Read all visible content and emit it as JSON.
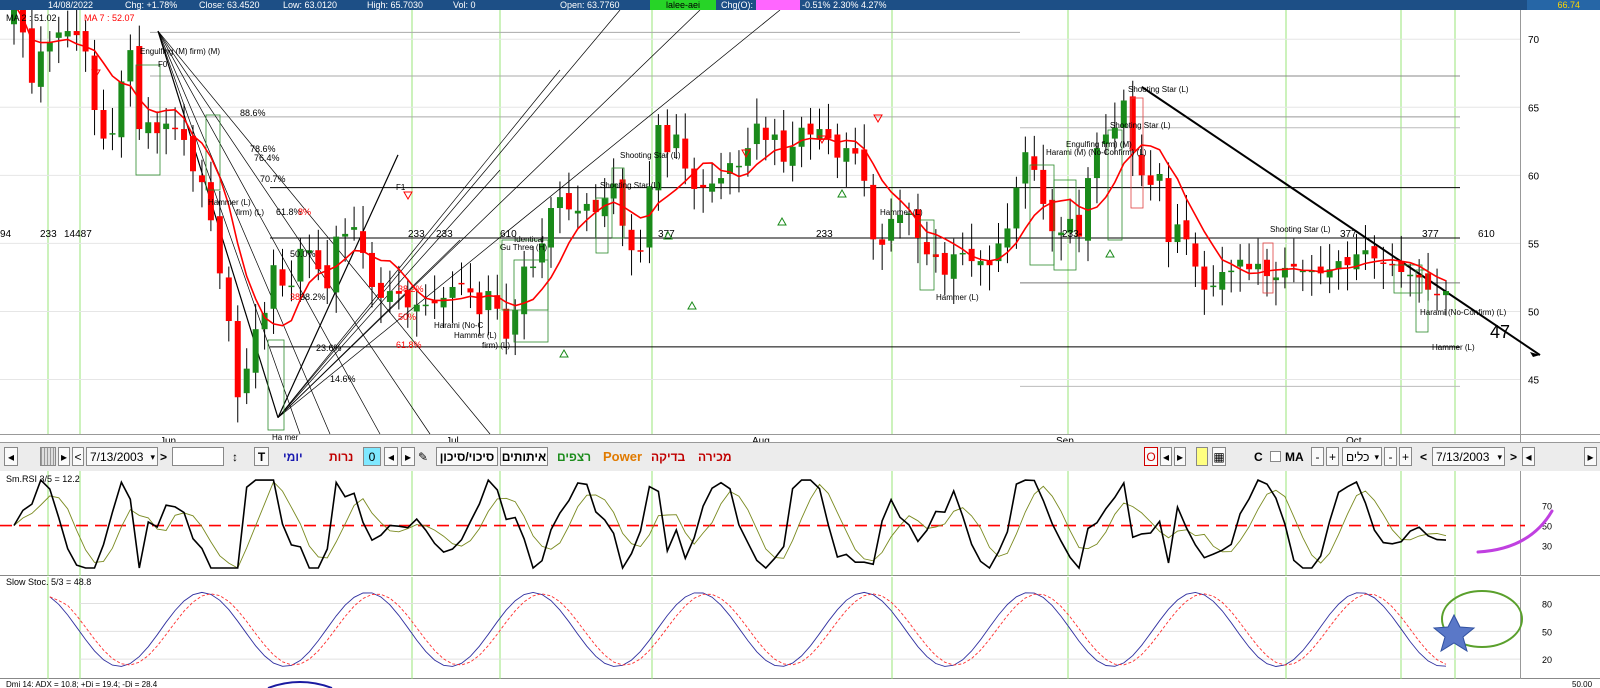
{
  "topbar": {
    "date": "14/08/2022",
    "chg": "Chg: +1.78%",
    "close": "Close: 63.4520",
    "low": "Low: 63.0120",
    "high": "High: 65.7030",
    "vol": "Vol: 0",
    "open": "Open: 63.7760",
    "chip_green": "lalee-aei",
    "chg_o": "Chg(O):",
    "pcts": "-0.51% 2.30% 4.27%",
    "right_value": "66.74",
    "colors": {
      "bar": "#1d4f86",
      "chip_green": "#27d427",
      "chip_pink": "#ff66ff"
    }
  },
  "main": {
    "ma_labels": {
      "ma2": "MA 2 : 51.02",
      "ma7": "MA 7 : 52.07"
    },
    "y_ticks": [
      "70",
      "65",
      "60",
      "55",
      "50",
      "45"
    ],
    "month_labels": [
      "Jun",
      "Jul",
      "Aug",
      "Sep",
      "Oct"
    ],
    "fib_labels": [
      "88.6%",
      "78.6%",
      "76.4%",
      "70.7%",
      "61.8%",
      "8%",
      "50.0%",
      "38.2%",
      "38",
      "23.6%",
      "14.6%",
      "38.2%",
      "50%",
      "61.8%"
    ],
    "fib_markers": [
      "F0",
      "F1"
    ],
    "fib_numbers": [
      "94",
      "233",
      "14487",
      "233",
      "610",
      "233",
      "377",
      "233",
      "233-",
      "377",
      "377",
      "610"
    ],
    "patterns": [
      "Engulfing (M) firm) (M)",
      "Hammer (L)",
      "firm) (L)",
      "Harami (No-C",
      "Hammer (L)",
      "firm) (L)",
      "Identical",
      "Gu Three (H)",
      "Shooting Star (L)",
      "Shooting Star (L)",
      "Hammer (L)",
      "Hammer (L)",
      "Harami (M) (No-Confirm) (L)",
      "Engulfing firm) (M)",
      "Shooting Star (L)",
      "Shooting Star (L)",
      "Shooting Star (L)",
      "Harami (No-Confirm) (L)",
      "Hammer (L)",
      "Ha mer"
    ],
    "annotation_47": "47",
    "colors": {
      "ma_line": "#ff0000",
      "up": "#1a8a1a",
      "down": "#ff0000",
      "trend": "#000000",
      "grid_v": "#99e57a"
    }
  },
  "toolbar": {
    "date_left": "7/13/2003",
    "date_right": "7/13/2003",
    "yomi": "יומי",
    "nerot": "נרות",
    "zero": "0",
    "sikui": "סיכוי/סיכון",
    "itutim": "איתותים",
    "retzifim": "רצפים",
    "power": "Power",
    "bdika": "בדיקה",
    "mechira": "מכירה",
    "o_label": "O",
    "c_label": "C",
    "ma_label": "MA",
    "kelim": "כלים",
    "colors": {
      "retzifim": "#1c8c1c",
      "power": "#e07a00",
      "bdika": "#c00000",
      "mechira": "#c00000"
    }
  },
  "rsi": {
    "label": "Sm.RSI 3/5 = 12.2",
    "y_ticks": [
      "70",
      "50",
      "30"
    ],
    "colors": {
      "line": "#000000",
      "signal": "#7a8a20",
      "level": "#ff0000",
      "arrow": "#c040e0"
    }
  },
  "stoch": {
    "label": "Slow Stoc. 5/3 = 48.8",
    "y_ticks": [
      "80",
      "50",
      "20"
    ],
    "colors": {
      "k": "#3030a0",
      "d": "#ff3030",
      "ellipse": "#5aa02c",
      "star": "#5a78c8"
    }
  },
  "dmi": {
    "label": "Dmi 14: ADX = 10.8; +Di = 19.4; -Di = 28.4",
    "tick": "50.00"
  },
  "chart_data": [
    {
      "type": "candlestick",
      "title": "",
      "ylim": [
        41,
        72
      ],
      "y_ticks": [
        45,
        50,
        55,
        60,
        65,
        70
      ],
      "x_labels": [
        "Jun",
        "Jul",
        "Aug",
        "Sep",
        "Oct"
      ],
      "close": [
        72.6,
        70.5,
        66.8,
        69.1,
        69.8,
        70.5,
        70.6,
        70.3,
        69.1,
        64.8,
        62.7,
        63.1,
        66.9,
        69.2,
        63.4,
        63.9,
        63.1,
        63.8,
        63.4,
        62.6,
        60.3,
        59.5,
        56.7,
        52.8,
        49.3,
        43.7,
        45.8,
        48.7,
        49.9,
        53.4,
        51.9,
        51.9,
        54.6,
        54.5,
        53.1,
        51.7,
        55.5,
        55.7,
        56.2,
        54.3,
        51.8,
        51.0,
        51.5,
        51.3,
        50.3,
        50.5,
        50.5,
        50.6,
        51.0,
        51.8,
        52.0,
        51.4,
        49.8,
        51.5,
        50.2,
        48.0,
        50.1,
        53.3,
        53.3,
        55.0,
        57.6,
        58.4,
        57.5,
        57.4,
        57.9,
        57.3,
        58.3,
        59.4,
        56.3,
        54.5,
        54.4,
        59.2,
        63.7,
        61.7,
        63.0,
        60.5,
        59.0,
        59.1,
        59.4,
        59.8,
        60.9,
        60.7,
        62.0,
        63.8,
        62.6,
        63.0,
        61.0,
        62.1,
        63.5,
        63.0,
        63.4,
        62.7,
        61.3,
        62.0,
        61.6,
        59.6,
        55.3,
        54.9,
        56.8,
        57.1,
        57.2,
        55.4,
        54.2,
        54.0,
        52.7,
        54.2,
        54.3,
        53.7,
        53.7,
        53.4,
        55.0,
        56.1,
        59.1,
        61.7,
        60.4,
        57.9,
        55.9,
        55.8,
        56.8,
        55.5,
        59.8,
        62.0,
        63.0,
        63.5,
        65.5,
        61.8,
        60.0,
        59.3,
        60.1,
        55.1,
        56.4,
        55.3,
        53.3,
        51.6,
        51.9,
        52.9,
        53.0,
        53.8,
        53.1,
        53.5,
        52.6,
        52.5,
        53.2,
        53.3,
        53.0,
        53.0,
        52.8,
        53.1,
        53.7,
        53.4,
        54.2,
        54.5,
        53.9,
        53.5,
        53.4,
        52.9,
        52.7,
        52.5,
        51.6,
        51.2,
        51.5
      ],
      "series": [
        {
          "name": "MA 2",
          "value": 51.02
        },
        {
          "name": "MA 7",
          "value": 52.07
        }
      ],
      "trendline": {
        "from": [
          126,
          66.5
        ],
        "to": [
          167,
          46.8
        ],
        "label": "47"
      }
    },
    {
      "type": "line",
      "title": "Sm.RSI 3/5 = 12.2",
      "ylim": [
        5,
        100
      ],
      "y_ticks": [
        70,
        50,
        30
      ],
      "x": [
        0,
        26,
        55,
        85,
        118,
        150,
        178,
        210
      ],
      "series": [
        {
          "name": "Sm.RSI 3/5",
          "values": [
            32,
            55,
            15,
            78,
            25,
            95,
            40,
            30
          ],
          "last": 12.2
        }
      ],
      "level": 50
    },
    {
      "type": "line",
      "title": "Slow Stoc. 5/3 = 48.8",
      "ylim": [
        5,
        100
      ],
      "y_ticks": [
        80,
        50,
        20
      ],
      "series": [
        {
          "name": "Slow Stoc. 5/3",
          "values": [
            55,
            25,
            70,
            20,
            85,
            30,
            80,
            50
          ],
          "last": 48.8
        }
      ]
    }
  ]
}
